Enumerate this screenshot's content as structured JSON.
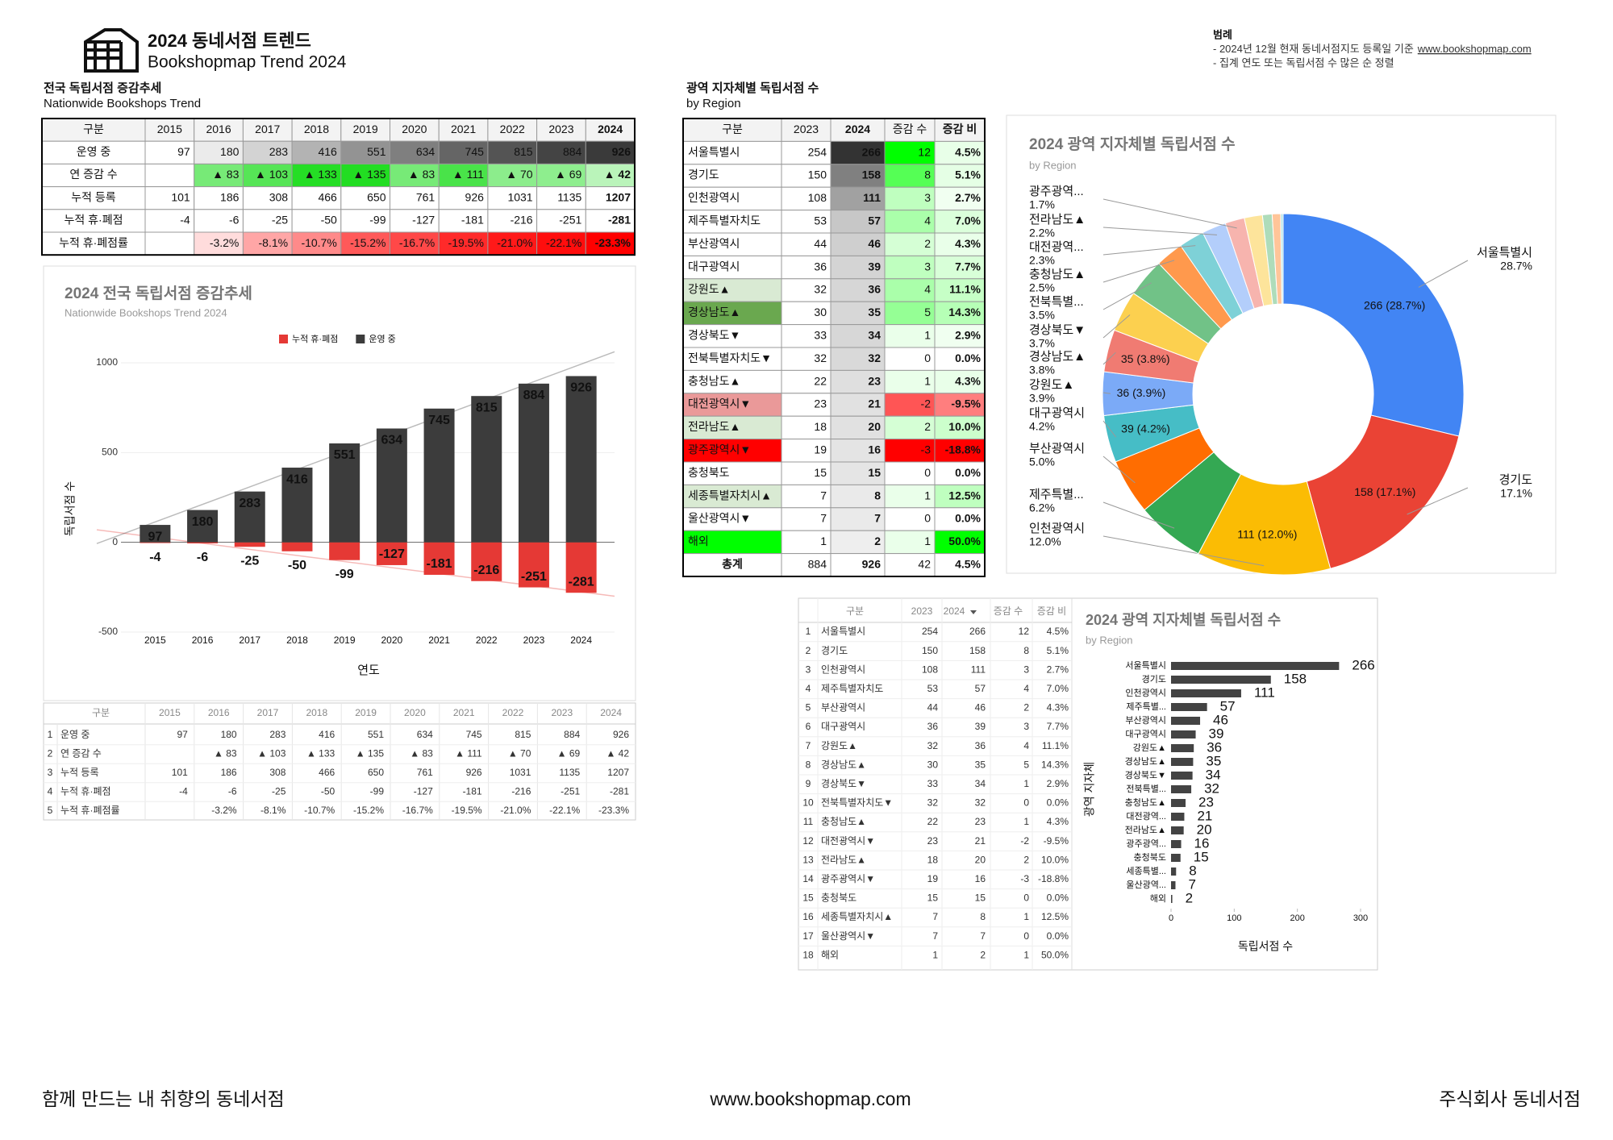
{
  "header": {
    "title": "2024 동네서점 트렌드",
    "subtitle": "Bookshopmap Trend 2024"
  },
  "legend_note": {
    "title": "범례",
    "line1": "- 2024년 12월 현재 동네서점지도 등록일 기준",
    "link": "www.bookshopmap.com",
    "line2": "- 집계 연도 또는 독립서점 수 많은 순 정렬"
  },
  "trend_table": {
    "title": "전국 독립서점 증감추세",
    "subtitle": "Nationwide Bookshops Trend",
    "columns": [
      "구분",
      "2015",
      "2016",
      "2017",
      "2018",
      "2019",
      "2020",
      "2021",
      "2022",
      "2023",
      "2024"
    ],
    "rows": [
      {
        "label": "운영 중",
        "values": [
          97,
          180,
          283,
          416,
          551,
          634,
          745,
          815,
          884,
          926
        ]
      },
      {
        "label": "연 증감 수",
        "values": [
          null,
          "▲ 83",
          "▲ 103",
          "▲ 133",
          "▲ 135",
          "▲ 83",
          "▲ 111",
          "▲ 70",
          "▲ 69",
          "▲ 42"
        ]
      },
      {
        "label": "누적 등록",
        "values": [
          101,
          186,
          308,
          466,
          650,
          761,
          926,
          1031,
          1135,
          1207
        ]
      },
      {
        "label": "누적 휴·폐점",
        "values": [
          -4,
          -6,
          -25,
          -50,
          -99,
          -127,
          -181,
          -216,
          -251,
          -281
        ]
      },
      {
        "label": "누적 휴·폐점률",
        "values": [
          null,
          "-3.2%",
          "-8.1%",
          "-10.7%",
          "-15.2%",
          "-16.7%",
          "-19.5%",
          "-21.0%",
          "-22.1%",
          "-23.3%"
        ]
      }
    ]
  },
  "trend_small_table": {
    "row_numbers": [
      1,
      2,
      3,
      4,
      5
    ]
  },
  "region_table": {
    "title": "광역 지자체별 독립서점 수",
    "subtitle": "by Region",
    "columns": [
      "구분",
      "2023",
      "2024",
      "증감 수",
      "증감 비"
    ],
    "rows": [
      [
        "서울특별시",
        254,
        266,
        12,
        "4.5%"
      ],
      [
        "경기도",
        150,
        158,
        8,
        "5.1%"
      ],
      [
        "인천광역시",
        108,
        111,
        3,
        "2.7%"
      ],
      [
        "제주특별자치도",
        53,
        57,
        4,
        "7.0%"
      ],
      [
        "부산광역시",
        44,
        46,
        2,
        "4.3%"
      ],
      [
        "대구광역시",
        36,
        39,
        3,
        "7.7%"
      ],
      [
        "강원도▲",
        32,
        36,
        4,
        "11.1%"
      ],
      [
        "경상남도▲",
        30,
        35,
        5,
        "14.3%"
      ],
      [
        "경상북도▼",
        33,
        34,
        1,
        "2.9%"
      ],
      [
        "전북특별자치도▼",
        32,
        32,
        0,
        "0.0%"
      ],
      [
        "충청남도▲",
        22,
        23,
        1,
        "4.3%"
      ],
      [
        "대전광역시▼",
        23,
        21,
        -2,
        "-9.5%"
      ],
      [
        "전라남도▲",
        18,
        20,
        2,
        "10.0%"
      ],
      [
        "광주광역시▼",
        19,
        16,
        -3,
        "-18.8%"
      ],
      [
        "충청북도",
        15,
        15,
        0,
        "0.0%"
      ],
      [
        "세종특별자치시▲",
        7,
        8,
        1,
        "12.5%"
      ],
      [
        "울산광역시▼",
        7,
        7,
        0,
        "0.0%"
      ],
      [
        "해외",
        1,
        2,
        1,
        "50.0%"
      ]
    ],
    "total": [
      "총계",
      884,
      926,
      42,
      "4.5%"
    ]
  },
  "region_small_table": {
    "row_numbers": [
      1,
      2,
      3,
      4,
      5,
      6,
      7,
      8,
      9,
      10,
      11,
      12,
      13,
      14,
      15,
      16,
      17,
      18
    ]
  },
  "chart_data": [
    {
      "type": "stacked_bar",
      "title": "2024 전국 독립서점 증감추세",
      "subtitle": "Nationwide Bookshops Trend 2024",
      "x_label": "연도",
      "y_label": "독립서점 수",
      "categories": [
        "2015",
        "2016",
        "2017",
        "2018",
        "2019",
        "2020",
        "2021",
        "2022",
        "2023",
        "2024"
      ],
      "series": [
        {
          "name": "누적 휴·폐점",
          "color": "#e53935",
          "values": [
            -4,
            -6,
            -25,
            -50,
            -99,
            -127,
            -181,
            -216,
            -251,
            -281
          ]
        },
        {
          "name": "운영 중",
          "color": "#3c3c3c",
          "values": [
            97,
            180,
            283,
            416,
            551,
            634,
            745,
            815,
            884,
            926
          ]
        }
      ],
      "ylim": [
        -500,
        1000
      ],
      "yticks": [
        -500,
        0,
        500,
        1000
      ],
      "grid": true,
      "legend": "top",
      "trendline": true
    },
    {
      "type": "donut",
      "title": "2024 광역 지자체별 독립서점 수",
      "subtitle": "by Region",
      "categories": [
        "서울특별시",
        "경기도",
        "인천광역시",
        "제주특별...",
        "부산광역시",
        "대구광역시",
        "강원도▲",
        "경상남도▲",
        "경상북도▼",
        "전북특별...",
        "충청남도▲",
        "대전광역...",
        "전라남도▲",
        "광주광역...",
        null,
        null,
        null,
        null
      ],
      "values": [
        266,
        158,
        111,
        57,
        46,
        39,
        36,
        35,
        34,
        32,
        23,
        21,
        20,
        16,
        15,
        8,
        7,
        2
      ],
      "value_labels": [
        "266 (28.7%)",
        "158 (17.1%)",
        "111 (12.0%)",
        null,
        null,
        "39 (4.2%)",
        "36 (3.9%)",
        "35 (3.8%)",
        null,
        null,
        null,
        null,
        null,
        null,
        null,
        null,
        null,
        null
      ],
      "percent_labels": [
        "28.7%",
        "17.1%",
        "12.0%",
        "6.2%",
        "5.0%",
        "4.2%",
        "3.9%",
        "3.8%",
        "3.7%",
        "3.5%",
        "2.5%",
        "2.3%",
        "2.2%",
        "1.7%",
        null,
        null,
        null,
        null
      ],
      "colors": [
        "#4285f4",
        "#ea4335",
        "#fbbc04",
        "#34a853",
        "#ff6d01",
        "#46bdc6",
        "#7baaf7",
        "#f07b72",
        "#fcd04f",
        "#71c287",
        "#ff994d",
        "#7ed1d7",
        "#b3cefb",
        "#f7b4ae",
        "#fde49b",
        "#aedcba",
        "#ffc599",
        "#b5e5e8"
      ]
    },
    {
      "type": "hbar",
      "title": "2024 광역 지자체별 독립서점 수",
      "subtitle": "by Region",
      "x_label": "독립서점 수",
      "y_label": "광역 지자체",
      "categories": [
        "서울특별시",
        "경기도",
        "인천광역시",
        "제주특별...",
        "부산광역시",
        "대구광역시",
        "강원도▲",
        "경상남도▲",
        "경상북도▼",
        "전북특별...",
        "충청남도▲",
        "대전광역...",
        "전라남도▲",
        "광주광역...",
        "충청북도",
        "세종특별...",
        "울산광역...",
        "해외"
      ],
      "values": [
        266,
        158,
        111,
        57,
        46,
        39,
        36,
        35,
        34,
        32,
        23,
        21,
        20,
        16,
        15,
        8,
        7,
        2
      ],
      "color": "#434343",
      "xlim": [
        0,
        300
      ],
      "xticks": [
        0,
        100,
        200,
        300
      ]
    }
  ],
  "footer": {
    "left": "함께 만드는 내 취향의 동네서점",
    "center": "www.bookshopmap.com",
    "right": "주식회사 동네서점"
  }
}
